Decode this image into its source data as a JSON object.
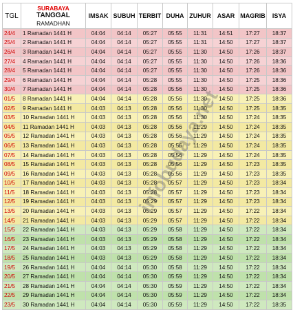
{
  "header": {
    "tgl": "TGL",
    "city": "SURABAYA",
    "tanggal": "TANGGAL",
    "ramadhan": "RAMADHAN",
    "imsak": "IMSAK",
    "subuh": "SUBUH",
    "terbit": "TERBIT",
    "duha": "DUHA",
    "zuhur": "ZUHUR",
    "asar": "ASAR",
    "magrib": "MAGRIB",
    "isya": "ISYA"
  },
  "row_colors": {
    "pink": "#f6d2d4",
    "yellow": "#f8f1b6",
    "green": "#cfe9bf",
    "date_text": "#d00000"
  },
  "watermark": "infobudaya.net",
  "rows": [
    {
      "tgl": "24/4",
      "name": "1 Ramadan 1441 H",
      "imsak": "04:04",
      "subuh": "04:14",
      "terbit": "05:27",
      "duha": "05:55",
      "zuhur": "11:31",
      "asar": "14:51",
      "magrib": "17:27",
      "isya": "18:37",
      "band": "pink"
    },
    {
      "tgl": "25/4",
      "name": "2 Ramadan 1441 H",
      "imsak": "04:04",
      "subuh": "04:14",
      "terbit": "05:27",
      "duha": "05:55",
      "zuhur": "11:31",
      "asar": "14:50",
      "magrib": "17:27",
      "isya": "18:37",
      "band": "pink"
    },
    {
      "tgl": "26/4",
      "name": "3 Ramadan 1441 H",
      "imsak": "04:04",
      "subuh": "04:14",
      "terbit": "05:27",
      "duha": "05:55",
      "zuhur": "11:30",
      "asar": "14:50",
      "magrib": "17:26",
      "isya": "18:37",
      "band": "pink"
    },
    {
      "tgl": "27/4",
      "name": "4 Ramadan 1441 H",
      "imsak": "04:04",
      "subuh": "04:14",
      "terbit": "05:27",
      "duha": "05:55",
      "zuhur": "11:30",
      "asar": "14:50",
      "magrib": "17:26",
      "isya": "18:36",
      "band": "pink"
    },
    {
      "tgl": "28/4",
      "name": "5 Ramadan 1441 H",
      "imsak": "04:04",
      "subuh": "04:14",
      "terbit": "05:27",
      "duha": "05:55",
      "zuhur": "11:30",
      "asar": "14:50",
      "magrib": "17:26",
      "isya": "18:36",
      "band": "pink"
    },
    {
      "tgl": "29/4",
      "name": "6 Ramadan 1441 H",
      "imsak": "04:04",
      "subuh": "04:14",
      "terbit": "05:28",
      "duha": "05:55",
      "zuhur": "11:30",
      "asar": "14:50",
      "magrib": "17:25",
      "isya": "18:36",
      "band": "pink"
    },
    {
      "tgl": "30/4",
      "name": "7 Ramadan 1441 H",
      "imsak": "04:04",
      "subuh": "04:14",
      "terbit": "05:28",
      "duha": "05:56",
      "zuhur": "11:30",
      "asar": "14:50",
      "magrib": "17:25",
      "isya": "18:36",
      "band": "pink"
    },
    {
      "tgl": "01/5",
      "name": "8 Ramadan 1441 H",
      "imsak": "04:04",
      "subuh": "04:14",
      "terbit": "05:28",
      "duha": "05:56",
      "zuhur": "11:30",
      "asar": "14:50",
      "magrib": "17:25",
      "isya": "18:36",
      "band": "yellow"
    },
    {
      "tgl": "02/5",
      "name": "9 Ramadan 1441 H",
      "imsak": "04:03",
      "subuh": "04:13",
      "terbit": "05:28",
      "duha": "05:56",
      "zuhur": "11:30",
      "asar": "14:50",
      "magrib": "17:25",
      "isya": "18:35",
      "band": "yellow"
    },
    {
      "tgl": "03/5",
      "name": "10 Ramadan 1441 H",
      "imsak": "04:03",
      "subuh": "04:13",
      "terbit": "05:28",
      "duha": "05:56",
      "zuhur": "11:30",
      "asar": "14:50",
      "magrib": "17:24",
      "isya": "18:35",
      "band": "yellow"
    },
    {
      "tgl": "04/5",
      "name": "11 Ramadan 1441 H",
      "imsak": "04:03",
      "subuh": "04:13",
      "terbit": "05:28",
      "duha": "05:56",
      "zuhur": "11:29",
      "asar": "14:50",
      "magrib": "17:24",
      "isya": "18:35",
      "band": "yellow"
    },
    {
      "tgl": "05/5",
      "name": "12 Ramadan 1441 H",
      "imsak": "04:03",
      "subuh": "04:13",
      "terbit": "05:28",
      "duha": "05:56",
      "zuhur": "11:29",
      "asar": "14:50",
      "magrib": "17:24",
      "isya": "18:35",
      "band": "yellow"
    },
    {
      "tgl": "06/5",
      "name": "13 Ramadan 1441 H",
      "imsak": "04:03",
      "subuh": "04:13",
      "terbit": "05:28",
      "duha": "05:56",
      "zuhur": "11:29",
      "asar": "14:50",
      "magrib": "17:24",
      "isya": "18:35",
      "band": "yellow"
    },
    {
      "tgl": "07/5",
      "name": "14 Ramadan 1441 H",
      "imsak": "04:03",
      "subuh": "04:13",
      "terbit": "05:28",
      "duha": "05:56",
      "zuhur": "11:29",
      "asar": "14:50",
      "magrib": "17:24",
      "isya": "18:35",
      "band": "yellow"
    },
    {
      "tgl": "08/5",
      "name": "15 Ramadan 1441 H",
      "imsak": "04:03",
      "subuh": "04:13",
      "terbit": "05:28",
      "duha": "05:56",
      "zuhur": "11:29",
      "asar": "14:50",
      "magrib": "17:23",
      "isya": "18:35",
      "band": "yellow"
    },
    {
      "tgl": "09/5",
      "name": "16 Ramadan 1441 H",
      "imsak": "04:03",
      "subuh": "04:13",
      "terbit": "05:28",
      "duha": "05:56",
      "zuhur": "11:29",
      "asar": "14:50",
      "magrib": "17:23",
      "isya": "18:35",
      "band": "yellow"
    },
    {
      "tgl": "10/5",
      "name": "17 Ramadan 1441 H",
      "imsak": "04:03",
      "subuh": "04:13",
      "terbit": "05:28",
      "duha": "05:57",
      "zuhur": "11:29",
      "asar": "14:50",
      "magrib": "17:23",
      "isya": "18:34",
      "band": "yellow"
    },
    {
      "tgl": "11/5",
      "name": "18 Ramadan 1441 H",
      "imsak": "04:03",
      "subuh": "04:13",
      "terbit": "05:28",
      "duha": "05:57",
      "zuhur": "11:29",
      "asar": "14:50",
      "magrib": "17:23",
      "isya": "18:34",
      "band": "yellow"
    },
    {
      "tgl": "12/5",
      "name": "19 Ramadan 1441 H",
      "imsak": "04:03",
      "subuh": "04:13",
      "terbit": "05:29",
      "duha": "05:57",
      "zuhur": "11:29",
      "asar": "14:50",
      "magrib": "17:23",
      "isya": "18:34",
      "band": "yellow"
    },
    {
      "tgl": "13/5",
      "name": "20 Ramadan 1441 H",
      "imsak": "04:03",
      "subuh": "04:13",
      "terbit": "05:29",
      "duha": "05:57",
      "zuhur": "11:29",
      "asar": "14:50",
      "magrib": "17:22",
      "isya": "18:34",
      "band": "yellow"
    },
    {
      "tgl": "14/5",
      "name": "21 Ramadan 1441 H",
      "imsak": "04:03",
      "subuh": "04:13",
      "terbit": "05:29",
      "duha": "05:57",
      "zuhur": "11:29",
      "asar": "14:50",
      "magrib": "17:22",
      "isya": "18:34",
      "band": "yellow"
    },
    {
      "tgl": "15/5",
      "name": "22 Ramadan 1441 H",
      "imsak": "04:03",
      "subuh": "04:13",
      "terbit": "05:29",
      "duha": "05:58",
      "zuhur": "11:29",
      "asar": "14:50",
      "magrib": "17:22",
      "isya": "18:34",
      "band": "green"
    },
    {
      "tgl": "16/5",
      "name": "23 Ramadan 1441 H",
      "imsak": "04:03",
      "subuh": "04:13",
      "terbit": "05:29",
      "duha": "05:58",
      "zuhur": "11:29",
      "asar": "14:50",
      "magrib": "17:22",
      "isya": "18:34",
      "band": "green"
    },
    {
      "tgl": "17/5",
      "name": "24 Ramadan 1441 H",
      "imsak": "04:03",
      "subuh": "04:13",
      "terbit": "05:29",
      "duha": "05:58",
      "zuhur": "11:29",
      "asar": "14:50",
      "magrib": "17:22",
      "isya": "18:34",
      "band": "green"
    },
    {
      "tgl": "18/5",
      "name": "25 Ramadan 1441 H",
      "imsak": "04:03",
      "subuh": "04:13",
      "terbit": "05:29",
      "duha": "05:58",
      "zuhur": "11:29",
      "asar": "14:50",
      "magrib": "17:22",
      "isya": "18:34",
      "band": "green"
    },
    {
      "tgl": "19/5",
      "name": "26 Ramadan 1441 H",
      "imsak": "04:04",
      "subuh": "04:14",
      "terbit": "05:30",
      "duha": "05:58",
      "zuhur": "11:29",
      "asar": "14:50",
      "magrib": "17:22",
      "isya": "18:34",
      "band": "green"
    },
    {
      "tgl": "20/5",
      "name": "27 Ramadan 1441 H",
      "imsak": "04:04",
      "subuh": "04:14",
      "terbit": "05:30",
      "duha": "05:59",
      "zuhur": "11:29",
      "asar": "14:50",
      "magrib": "17:22",
      "isya": "18:34",
      "band": "green"
    },
    {
      "tgl": "21/5",
      "name": "28 Ramadan 1441 H",
      "imsak": "04:04",
      "subuh": "04:14",
      "terbit": "05:30",
      "duha": "05:59",
      "zuhur": "11:29",
      "asar": "14:50",
      "magrib": "17:22",
      "isya": "18:34",
      "band": "green"
    },
    {
      "tgl": "22/5",
      "name": "29 Ramadan 1441 H",
      "imsak": "04:04",
      "subuh": "04:14",
      "terbit": "05:30",
      "duha": "05:59",
      "zuhur": "11:29",
      "asar": "14:50",
      "magrib": "17:22",
      "isya": "18:34",
      "band": "green"
    },
    {
      "tgl": "23/5",
      "name": "30 Ramadan 1441 H",
      "imsak": "04:04",
      "subuh": "04:14",
      "terbit": "05:30",
      "duha": "05:59",
      "zuhur": "11:29",
      "asar": "14:50",
      "magrib": "17:22",
      "isya": "18:35",
      "band": "green"
    }
  ]
}
